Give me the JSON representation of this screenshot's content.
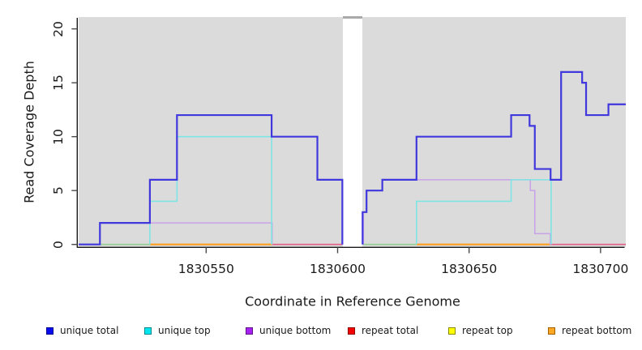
{
  "chart_data": {
    "type": "line",
    "subtype": "step",
    "title": "",
    "xlabel": "Coordinate in Reference Genome",
    "ylabel": "Read Coverage Depth",
    "xlim": [
      1830501.5,
      1830709.6
    ],
    "ylim": [
      0,
      21.1
    ],
    "x_ticks": [
      1830550,
      1830600,
      1830650,
      1830700
    ],
    "y_ticks": [
      0,
      5,
      10,
      15,
      20
    ],
    "grid": false,
    "plot_bg_color": "#DBDBDB",
    "axis_color": "#1a1a1a",
    "no_data_gap": {
      "from": 1830602,
      "to": 1830609.5
    },
    "series": [
      {
        "name": "unique total",
        "line_color": "#4038DC",
        "line_width": 2.2,
        "draw": true,
        "segments": [
          {
            "start_at_zero": false,
            "points": [
              [
                1830501.5,
                0
              ],
              [
                1830509.6,
                2
              ],
              [
                1830528.6,
                6
              ],
              [
                1830538.9,
                12
              ],
              [
                1830574.9,
                10
              ],
              [
                1830592.3,
                6
              ],
              [
                1830601.8,
                0
              ]
            ]
          },
          {
            "start_at_zero": true,
            "points": [
              [
                1830609.5,
                3
              ],
              [
                1830611,
                5
              ],
              [
                1830617,
                6
              ],
              [
                1830630,
                10
              ],
              [
                1830666,
                12
              ],
              [
                1830673,
                11
              ],
              [
                1830675,
                7
              ],
              [
                1830681,
                6
              ],
              [
                1830685,
                16
              ],
              [
                1830693,
                15
              ],
              [
                1830694.5,
                12
              ],
              [
                1830703,
                13
              ],
              [
                1830709.6,
                13
              ]
            ]
          }
        ]
      },
      {
        "name": "unique top",
        "line_color": "#7FE4E4",
        "line_width": 1.6,
        "draw": true,
        "segments": [
          {
            "start_at_zero": true,
            "points": [
              [
                1830528.6,
                4
              ],
              [
                1830538.9,
                10
              ],
              [
                1830574.9,
                0
              ]
            ]
          },
          {
            "start_at_zero": true,
            "points": [
              [
                1830630,
                4
              ],
              [
                1830666,
                6
              ],
              [
                1830681.2,
                0
              ]
            ]
          }
        ]
      },
      {
        "name": "unique bottom",
        "line_color": "#C9A2E8",
        "line_width": 1.5,
        "draw": true,
        "segments": [
          {
            "start_at_zero": true,
            "points": [
              [
                1830509.6,
                2
              ],
              [
                1830575.1,
                0
              ]
            ]
          },
          {
            "start_at_zero": true,
            "points": [
              [
                1830609.8,
                3
              ],
              [
                1830611,
                5
              ],
              [
                1830617,
                6
              ],
              [
                1830673.3,
                5
              ],
              [
                1830675,
                1
              ],
              [
                1830680.9,
                0
              ]
            ]
          }
        ]
      },
      {
        "name": "repeat total",
        "line_color": "#E25E85",
        "line_width": 1.6,
        "draw": false,
        "segments": [
          {
            "start_at_zero": false,
            "points": [
              [
                1830501.5,
                0
              ],
              [
                1830709.6,
                0
              ]
            ]
          }
        ]
      },
      {
        "name": "repeat top",
        "line_color": "#E8E800",
        "line_width": 1.6,
        "draw": false,
        "segments": [
          {
            "start_at_zero": false,
            "points": [
              [
                1830501.5,
                0
              ],
              [
                1830709.6,
                0
              ]
            ]
          }
        ]
      },
      {
        "name": "repeat bottom",
        "line_color": "#FF9E20",
        "line_width": 2.2,
        "draw": false,
        "segments": [
          {
            "start_at_zero": false,
            "points": [
              [
                1830501.5,
                0
              ],
              [
                1830709.6,
                0
              ]
            ]
          }
        ]
      }
    ],
    "baseline_segments": [
      {
        "color": "#93CD90",
        "width": 1.6,
        "from": 1830509.6,
        "to": 1830528.6
      },
      {
        "color": "#FF9E20",
        "width": 2.2,
        "from": 1830528.6,
        "to": 1830575.1
      },
      {
        "color": "#E25E85",
        "width": 1.6,
        "from": 1830575.1,
        "to": 1830601.8
      },
      {
        "color": "#93CD90",
        "width": 1.6,
        "from": 1830609.8,
        "to": 1830630
      },
      {
        "color": "#FF9E20",
        "width": 2.2,
        "from": 1830630,
        "to": 1830680.6
      },
      {
        "color": "#E25E85",
        "width": 1.6,
        "from": 1830680.6,
        "to": 1830709.6
      }
    ],
    "legend": {
      "position": "bottom",
      "items": [
        {
          "label": "unique total",
          "fill": "#0A0AEE",
          "border": "#000090"
        },
        {
          "label": "unique top",
          "fill": "#00E6EE",
          "border": "#00868B"
        },
        {
          "label": "unique bottom",
          "fill": "#A722F0",
          "border": "#5E1387"
        },
        {
          "label": "repeat total",
          "fill": "#F50000",
          "border": "#8B0000"
        },
        {
          "label": "repeat top",
          "fill": "#FFFF00",
          "border": "#8B8B00"
        },
        {
          "label": "repeat bottom",
          "fill": "#FFA824",
          "border": "#A06000"
        }
      ]
    }
  }
}
